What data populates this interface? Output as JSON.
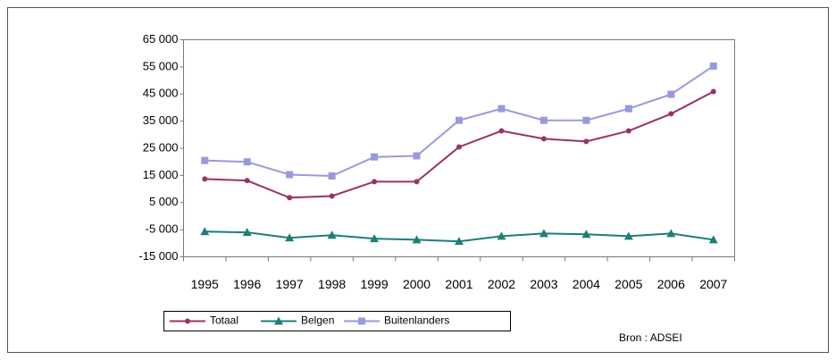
{
  "chart_data": {
    "type": "line",
    "categories": [
      "1995",
      "1996",
      "1997",
      "1998",
      "1999",
      "2000",
      "2001",
      "2002",
      "2003",
      "2004",
      "2005",
      "2006",
      "2007"
    ],
    "series": [
      {
        "name": "Totaal",
        "color": "#993366",
        "marker": "circle",
        "values": [
          13700,
          13100,
          6800,
          7400,
          12700,
          12700,
          25500,
          31400,
          28500,
          27500,
          31400,
          37700,
          45900
        ]
      },
      {
        "name": "Belgen",
        "color": "#1b7f7a",
        "marker": "triangle",
        "values": [
          -5700,
          -6000,
          -8000,
          -7000,
          -8300,
          -8700,
          -9300,
          -7400,
          -6400,
          -6700,
          -7400,
          -6400,
          -8700
        ]
      },
      {
        "name": "Buitenlanders",
        "color": "#9999dd",
        "marker": "square",
        "values": [
          20500,
          20000,
          15300,
          14800,
          21800,
          22200,
          35300,
          39600,
          35300,
          35300,
          39600,
          44900,
          55300
        ]
      }
    ],
    "ylim": [
      -15000,
      65000
    ],
    "yticks": [
      {
        "value": -15000,
        "label": "-15 000"
      },
      {
        "value": -5000,
        "label": "-5 000"
      },
      {
        "value": 5000,
        "label": "5 000"
      },
      {
        "value": 15000,
        "label": "15 000"
      },
      {
        "value": 25000,
        "label": "25 000"
      },
      {
        "value": 35000,
        "label": "35 000"
      },
      {
        "value": 45000,
        "label": "45 000"
      },
      {
        "value": 55000,
        "label": "55 000"
      },
      {
        "value": 65000,
        "label": "65 000"
      }
    ],
    "grid": false,
    "source": "Bron  :  ADSEI"
  }
}
